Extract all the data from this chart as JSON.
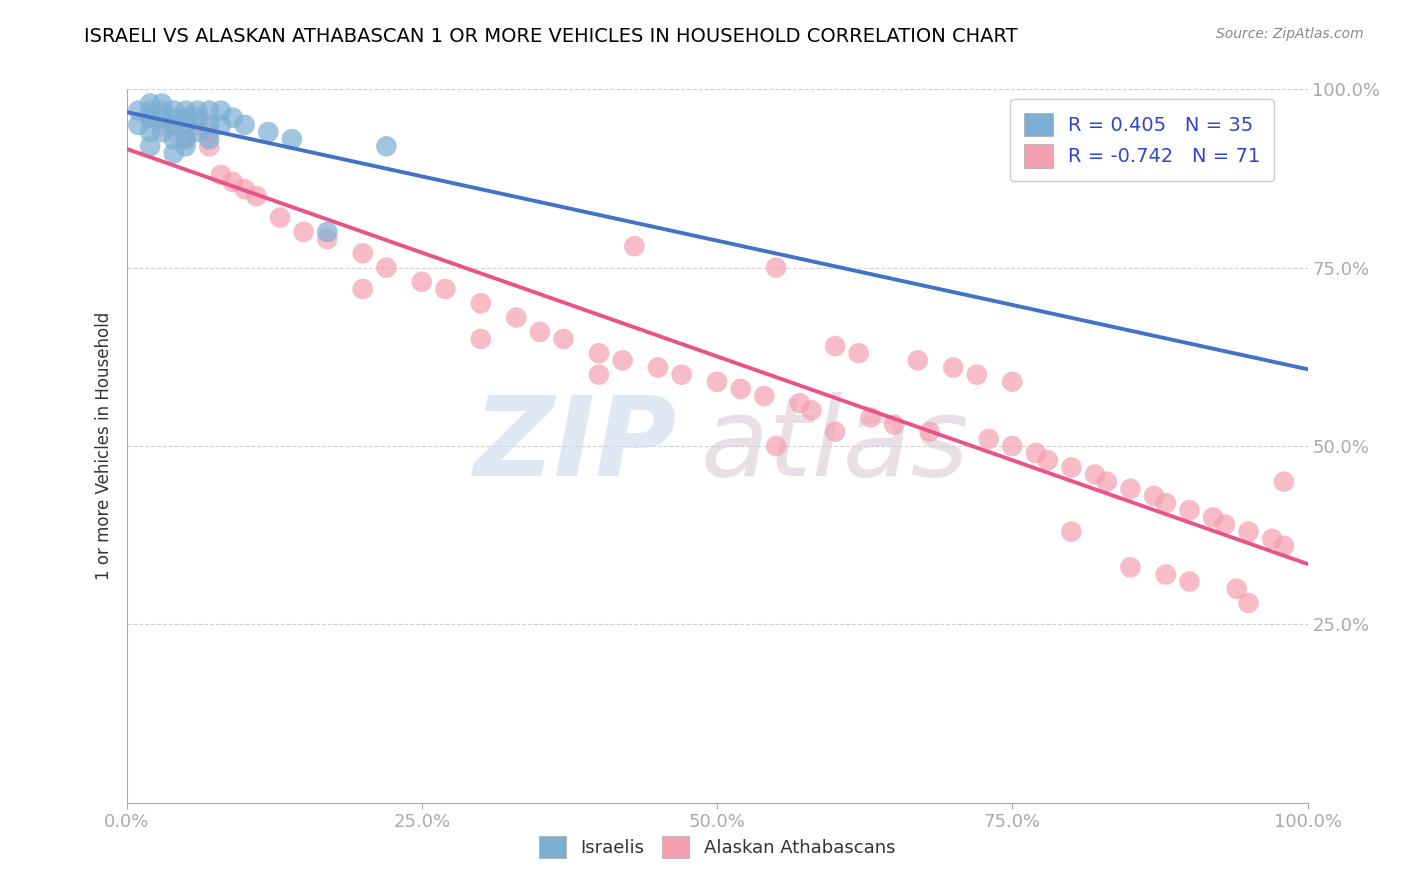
{
  "title": "ISRAELI VS ALASKAN ATHABASCAN 1 OR MORE VEHICLES IN HOUSEHOLD CORRELATION CHART",
  "source": "Source: ZipAtlas.com",
  "ylabel": "1 or more Vehicles in Household",
  "xlim": [
    0.0,
    1.0
  ],
  "ylim": [
    0.0,
    1.0
  ],
  "xticks": [
    0.0,
    0.25,
    0.5,
    0.75,
    1.0
  ],
  "yticks": [
    0.25,
    0.5,
    0.75,
    1.0
  ],
  "xticklabels": [
    "0.0%",
    "25.0%",
    "50.0%",
    "75.0%",
    "100.0%"
  ],
  "yticklabels": [
    "25.0%",
    "50.0%",
    "75.0%",
    "100.0%"
  ],
  "israeli_color": "#7bafd4",
  "athabascan_color": "#f4a0b0",
  "israeli_R": 0.405,
  "israeli_N": 35,
  "athabascan_R": -0.742,
  "athabascan_N": 71,
  "israeli_line_color": "#4472c4",
  "athabascan_line_color": "#e8538a",
  "israeli_x": [
    0.01,
    0.01,
    0.02,
    0.02,
    0.02,
    0.02,
    0.02,
    0.03,
    0.03,
    0.03,
    0.03,
    0.04,
    0.04,
    0.04,
    0.04,
    0.04,
    0.05,
    0.05,
    0.05,
    0.05,
    0.05,
    0.06,
    0.06,
    0.06,
    0.07,
    0.07,
    0.07,
    0.08,
    0.08,
    0.09,
    0.1,
    0.12,
    0.14,
    0.17,
    0.22
  ],
  "israeli_y": [
    0.97,
    0.95,
    0.98,
    0.97,
    0.96,
    0.94,
    0.92,
    0.98,
    0.97,
    0.96,
    0.94,
    0.97,
    0.96,
    0.95,
    0.93,
    0.91,
    0.97,
    0.96,
    0.95,
    0.93,
    0.92,
    0.97,
    0.96,
    0.94,
    0.97,
    0.95,
    0.93,
    0.97,
    0.95,
    0.96,
    0.95,
    0.94,
    0.93,
    0.8,
    0.92
  ],
  "athabascan_x": [
    0.02,
    0.03,
    0.04,
    0.05,
    0.05,
    0.06,
    0.07,
    0.07,
    0.08,
    0.09,
    0.1,
    0.11,
    0.13,
    0.15,
    0.17,
    0.2,
    0.22,
    0.25,
    0.27,
    0.3,
    0.33,
    0.35,
    0.37,
    0.4,
    0.42,
    0.43,
    0.45,
    0.47,
    0.5,
    0.52,
    0.54,
    0.55,
    0.57,
    0.58,
    0.6,
    0.62,
    0.63,
    0.65,
    0.67,
    0.68,
    0.7,
    0.72,
    0.73,
    0.75,
    0.75,
    0.77,
    0.78,
    0.8,
    0.8,
    0.82,
    0.83,
    0.85,
    0.85,
    0.87,
    0.88,
    0.88,
    0.9,
    0.9,
    0.92,
    0.93,
    0.94,
    0.95,
    0.95,
    0.97,
    0.98,
    0.98,
    0.55,
    0.6,
    0.3,
    0.4,
    0.2
  ],
  "athabascan_y": [
    0.96,
    0.95,
    0.94,
    0.96,
    0.93,
    0.95,
    0.94,
    0.92,
    0.88,
    0.87,
    0.86,
    0.85,
    0.82,
    0.8,
    0.79,
    0.77,
    0.75,
    0.73,
    0.72,
    0.7,
    0.68,
    0.66,
    0.65,
    0.63,
    0.62,
    0.78,
    0.61,
    0.6,
    0.59,
    0.58,
    0.57,
    0.75,
    0.56,
    0.55,
    0.64,
    0.63,
    0.54,
    0.53,
    0.62,
    0.52,
    0.61,
    0.6,
    0.51,
    0.59,
    0.5,
    0.49,
    0.48,
    0.47,
    0.38,
    0.46,
    0.45,
    0.44,
    0.33,
    0.43,
    0.42,
    0.32,
    0.41,
    0.31,
    0.4,
    0.39,
    0.3,
    0.38,
    0.28,
    0.37,
    0.45,
    0.36,
    0.5,
    0.52,
    0.65,
    0.6,
    0.72
  ]
}
